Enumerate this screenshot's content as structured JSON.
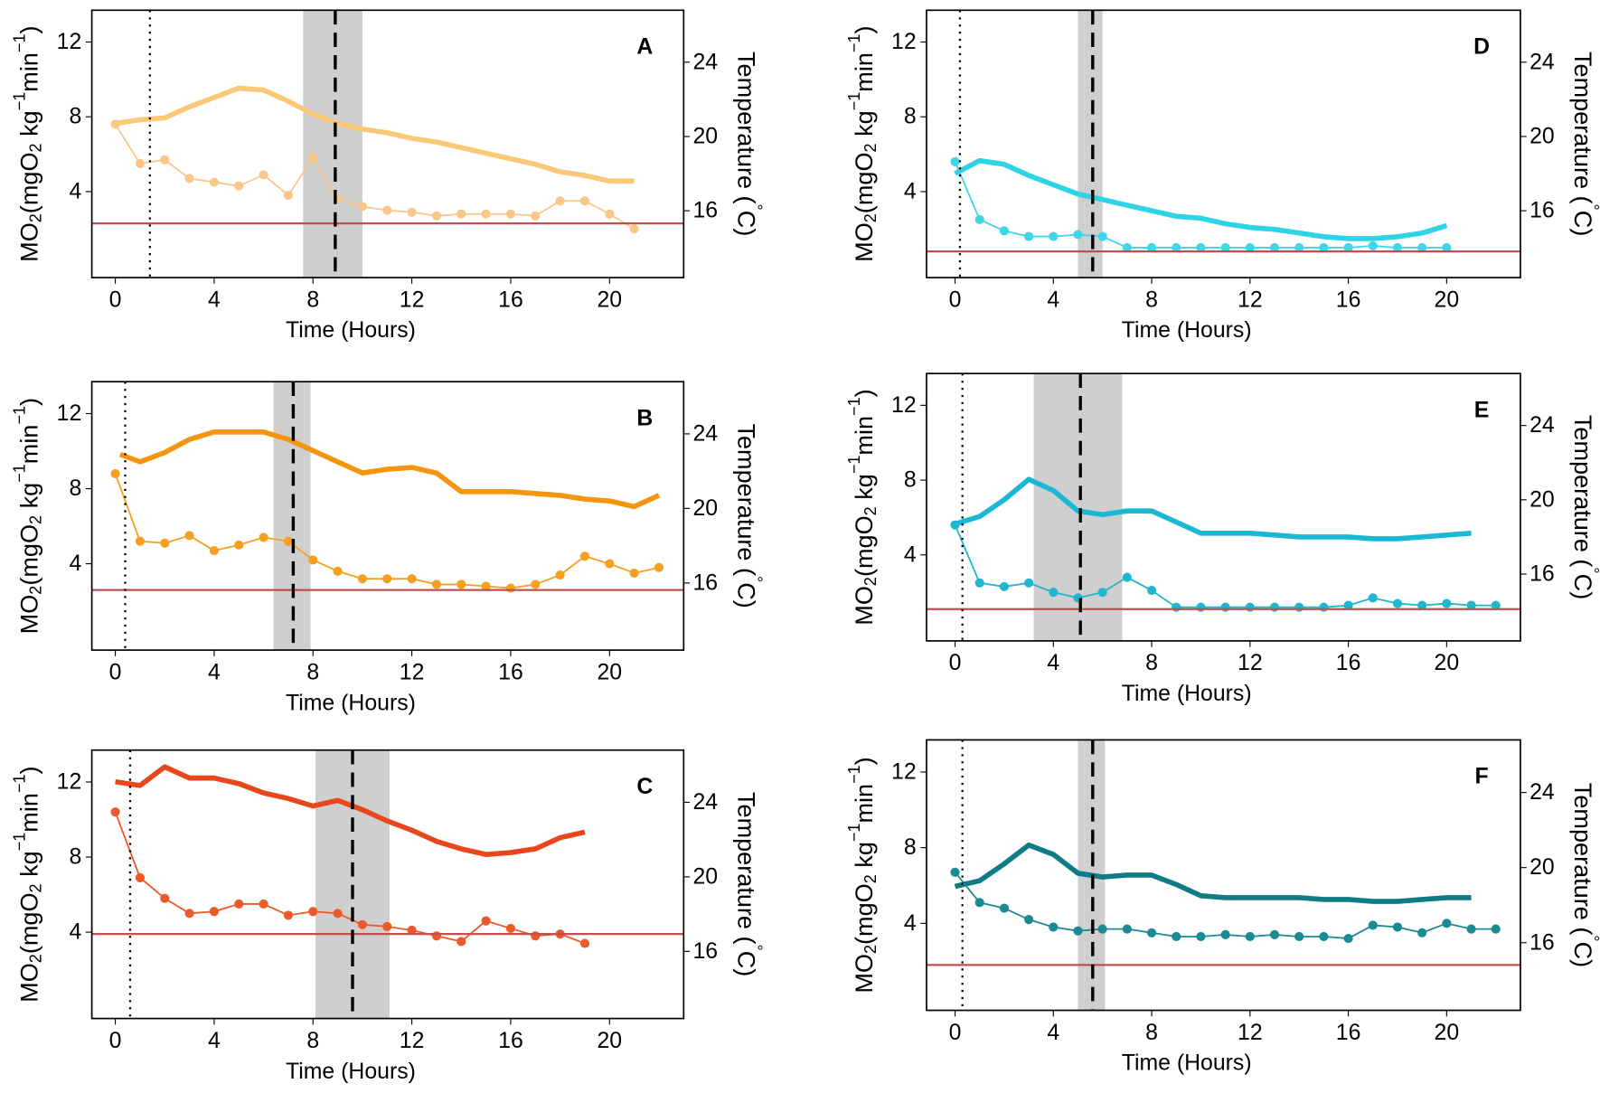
{
  "chart_data": [
    {
      "type": "line",
      "panel_label": "A",
      "x_label": "Time (Hours)",
      "y_label": [
        "MO",
        "2",
        "(mgO",
        "2",
        " kg",
        "−1",
        "min",
        "−1",
        ")"
      ],
      "y2_label": [
        "Temperature (",
        "°",
        "C)"
      ],
      "xlim": [
        -0.95,
        23
      ],
      "xticks": [
        0,
        4,
        8,
        12,
        16,
        20
      ],
      "ylim": [
        -0.6,
        13.7
      ],
      "yticks": [
        4,
        8,
        12
      ],
      "y2lim": [
        12.4,
        26.8
      ],
      "y2ticks": [
        16,
        20,
        24
      ],
      "series": [
        {
          "axis": "y2",
          "color": "#fbc878",
          "x": [
            0,
            1,
            2,
            3,
            4,
            5,
            6,
            7,
            8,
            9,
            10,
            11,
            12,
            13,
            14,
            15,
            16,
            17,
            18,
            19,
            20,
            21
          ],
          "values": [
            20.7,
            20.9,
            21.0,
            21.6,
            22.1,
            22.6,
            22.5,
            21.9,
            21.2,
            20.7,
            20.4,
            20.2,
            19.9,
            19.7,
            19.4,
            19.1,
            18.8,
            18.5,
            18.1,
            17.9,
            17.6,
            17.6
          ]
        },
        {
          "axis": "y",
          "color": "#f9c78a",
          "markers": true,
          "x": [
            0,
            1,
            2,
            3,
            4,
            5,
            6,
            7,
            8,
            9,
            10,
            11,
            12,
            13,
            14,
            15,
            16,
            17,
            18,
            19,
            20,
            21
          ],
          "values": [
            7.6,
            5.5,
            5.7,
            4.7,
            4.5,
            4.3,
            4.9,
            3.8,
            5.8,
            3.6,
            3.2,
            3.0,
            2.9,
            2.7,
            2.8,
            2.8,
            2.8,
            2.7,
            3.5,
            3.5,
            2.8,
            2.0
          ]
        }
      ],
      "hline": {
        "value": 2.3,
        "color": "#c0504d"
      },
      "dotted_vline": 1.4,
      "dashed_vline": 8.9,
      "band": [
        7.6,
        10.0
      ]
    },
    {
      "type": "line",
      "panel_label": "B",
      "x_label": "Time (Hours)",
      "y_label": [
        "MO",
        "2",
        "(mgO",
        "2",
        " kg",
        "−1",
        "min",
        "−1",
        ")"
      ],
      "y2_label": [
        "Temperature (",
        "°",
        "C)"
      ],
      "xlim": [
        -0.95,
        23
      ],
      "xticks": [
        0,
        4,
        8,
        12,
        16,
        20
      ],
      "ylim": [
        -0.6,
        13.7
      ],
      "yticks": [
        4,
        8,
        12
      ],
      "y2lim": [
        12.4,
        26.8
      ],
      "y2ticks": [
        16,
        20,
        24
      ],
      "series": [
        {
          "axis": "y2",
          "color": "#f4950f",
          "x": [
            0.2,
            1,
            2,
            3,
            4,
            5,
            6,
            7,
            8,
            9,
            10,
            11,
            12,
            13,
            14,
            15,
            16,
            17,
            18,
            19,
            20,
            21,
            22
          ],
          "values": [
            22.9,
            22.5,
            23.0,
            23.7,
            24.1,
            24.1,
            24.1,
            23.7,
            23.1,
            22.5,
            21.9,
            22.1,
            22.2,
            21.9,
            20.9,
            20.9,
            20.9,
            20.8,
            20.7,
            20.5,
            20.4,
            20.1,
            20.7
          ]
        },
        {
          "axis": "y",
          "color": "#f5a020",
          "markers": true,
          "x": [
            0,
            1,
            2,
            3,
            4,
            5,
            6,
            7,
            8,
            9,
            10,
            11,
            12,
            13,
            14,
            15,
            16,
            17,
            18,
            19,
            20,
            21,
            22
          ],
          "values": [
            8.8,
            5.2,
            5.1,
            5.5,
            4.7,
            5.0,
            5.4,
            5.2,
            4.2,
            3.6,
            3.2,
            3.2,
            3.2,
            2.9,
            2.9,
            2.8,
            2.7,
            2.9,
            3.4,
            4.4,
            4.0,
            3.5,
            3.8
          ]
        }
      ],
      "hline": {
        "value": 2.6,
        "color": "#c0504d"
      },
      "dotted_vline": 0.4,
      "dashed_vline": 7.2,
      "band": [
        6.4,
        7.9
      ]
    },
    {
      "type": "line",
      "panel_label": "C",
      "x_label": "Time (Hours)",
      "y_label": [
        "MO",
        "2",
        "(mgO",
        "2",
        " kg",
        "−1",
        "min",
        "−1",
        ")"
      ],
      "y2_label": [
        "Temperature (",
        "°",
        "C)"
      ],
      "xlim": [
        -0.95,
        23
      ],
      "xticks": [
        0,
        4,
        8,
        12,
        16,
        20
      ],
      "ylim": [
        -0.6,
        13.7
      ],
      "yticks": [
        4,
        8,
        12
      ],
      "y2lim": [
        12.4,
        26.8
      ],
      "y2ticks": [
        16,
        20,
        24
      ],
      "series": [
        {
          "axis": "y2",
          "color": "#e8461c",
          "x": [
            0,
            1,
            2,
            3,
            4,
            5,
            6,
            7,
            8,
            9,
            10,
            11,
            12,
            13,
            14,
            15,
            16,
            17,
            18,
            19
          ],
          "values": [
            25.1,
            24.9,
            25.9,
            25.3,
            25.3,
            25.0,
            24.5,
            24.2,
            23.8,
            24.1,
            23.6,
            23.0,
            22.5,
            21.9,
            21.5,
            21.2,
            21.3,
            21.5,
            22.1,
            22.4
          ]
        },
        {
          "axis": "y",
          "color": "#ec5a2a",
          "markers": true,
          "x": [
            0,
            1,
            2,
            3,
            4,
            5,
            6,
            7,
            8,
            9,
            10,
            11,
            12,
            13,
            14,
            15,
            16,
            17,
            18,
            19
          ],
          "values": [
            10.4,
            6.9,
            5.8,
            5.0,
            5.1,
            5.5,
            5.5,
            4.9,
            5.1,
            5.0,
            4.4,
            4.3,
            4.1,
            3.8,
            3.5,
            4.6,
            4.2,
            3.8,
            3.9,
            3.4
          ]
        }
      ],
      "hline": {
        "value": 3.9,
        "color": "#c0504d"
      },
      "dotted_vline": 0.6,
      "dashed_vline": 9.6,
      "band": [
        8.1,
        11.1
      ]
    },
    {
      "type": "line",
      "panel_label": "D",
      "x_label": "Time (Hours)",
      "y_label": [
        "MO",
        "2",
        "(mgO",
        "2",
        " kg",
        "−1",
        "min",
        "−1",
        ")"
      ],
      "y2_label": [
        "Temperature (",
        "°",
        "C)"
      ],
      "xlim": [
        -1.16,
        23
      ],
      "xticks": [
        0,
        4,
        8,
        12,
        16,
        20
      ],
      "ylim": [
        -0.6,
        13.7
      ],
      "yticks": [
        4,
        8,
        12
      ],
      "y2lim": [
        12.4,
        26.8
      ],
      "y2ticks": [
        16,
        20,
        24
      ],
      "series": [
        {
          "axis": "y2",
          "color": "#2ed3e6",
          "x": [
            0,
            1,
            2,
            3,
            4,
            5,
            6,
            7,
            8,
            9,
            10,
            11,
            12,
            13,
            14,
            15,
            16,
            17,
            18,
            19,
            20
          ],
          "values": [
            18.0,
            18.7,
            18.5,
            17.9,
            17.4,
            16.9,
            16.6,
            16.3,
            16.0,
            15.7,
            15.6,
            15.3,
            15.1,
            15.0,
            14.8,
            14.6,
            14.5,
            14.5,
            14.6,
            14.8,
            15.2
          ]
        },
        {
          "axis": "y",
          "color": "#3fd6e8",
          "markers": true,
          "x": [
            0,
            1,
            2,
            3,
            4,
            5,
            6,
            7,
            8,
            9,
            10,
            11,
            12,
            13,
            14,
            15,
            16,
            17,
            18,
            19,
            20
          ],
          "values": [
            5.6,
            2.5,
            1.9,
            1.6,
            1.6,
            1.7,
            1.6,
            1.0,
            1.0,
            1.0,
            1.0,
            1.0,
            1.0,
            1.0,
            1.0,
            1.0,
            1.0,
            1.1,
            1.0,
            1.0,
            1.0
          ]
        }
      ],
      "hline": {
        "value": 0.8,
        "color": "#c0504d"
      },
      "dotted_vline": 0.2,
      "dashed_vline": 5.6,
      "band": [
        5.0,
        6.0
      ]
    },
    {
      "type": "line",
      "panel_label": "E",
      "x_label": "Time (Hours)",
      "y_label": [
        "MO",
        "2",
        "(mgO",
        "2",
        " kg",
        "−1",
        "min",
        "−1",
        ")"
      ],
      "y2_label": [
        "Temperature (",
        "°",
        "C)"
      ],
      "xlim": [
        -1.16,
        23
      ],
      "xticks": [
        0,
        4,
        8,
        12,
        16,
        20
      ],
      "ylim": [
        -0.6,
        13.7
      ],
      "yticks": [
        4,
        8,
        12
      ],
      "y2lim": [
        12.4,
        26.8
      ],
      "y2ticks": [
        16,
        20,
        24
      ],
      "series": [
        {
          "axis": "y2",
          "color": "#1ab8d2",
          "x": [
            0,
            1,
            2,
            3,
            4,
            5,
            6,
            7,
            8,
            9,
            10,
            11,
            12,
            13,
            14,
            15,
            16,
            17,
            18,
            19,
            20,
            21
          ],
          "values": [
            18.7,
            19.1,
            20.0,
            21.1,
            20.5,
            19.4,
            19.2,
            19.4,
            19.4,
            18.8,
            18.2,
            18.2,
            18.2,
            18.1,
            18.0,
            18.0,
            18.0,
            17.9,
            17.9,
            18.0,
            18.1,
            18.2
          ]
        },
        {
          "axis": "y",
          "color": "#20b6cf",
          "markers": true,
          "x": [
            0,
            1,
            2,
            3,
            4,
            5,
            6,
            7,
            8,
            9,
            10,
            11,
            12,
            13,
            14,
            15,
            16,
            17,
            18,
            19,
            20,
            21,
            22
          ],
          "values": [
            5.6,
            2.5,
            2.3,
            2.5,
            2.0,
            1.7,
            2.0,
            2.8,
            2.1,
            1.2,
            1.2,
            1.2,
            1.2,
            1.2,
            1.2,
            1.2,
            1.3,
            1.7,
            1.4,
            1.3,
            1.4,
            1.3,
            1.3
          ]
        }
      ],
      "hline": {
        "value": 1.1,
        "color": "#c0504d"
      },
      "dotted_vline": 0.3,
      "dashed_vline": 5.1,
      "band": [
        3.2,
        6.8
      ]
    },
    {
      "type": "line",
      "panel_label": "F",
      "x_label": "Time (Hours)",
      "y_label": [
        "MO",
        "2",
        "(mgO",
        "2",
        " kg",
        "−1",
        "min",
        "−1",
        ")"
      ],
      "y2_label": [
        "Temperature (",
        "°",
        "C)"
      ],
      "xlim": [
        -1.16,
        23
      ],
      "xticks": [
        0,
        4,
        8,
        12,
        16,
        20
      ],
      "ylim": [
        -0.6,
        13.7
      ],
      "yticks": [
        4,
        8,
        12
      ],
      "y2lim": [
        12.4,
        26.8
      ],
      "y2ticks": [
        16,
        20,
        24
      ],
      "series": [
        {
          "axis": "y2",
          "color": "#0e7b85",
          "x": [
            0,
            1,
            2,
            3,
            4,
            5,
            6,
            7,
            8,
            9,
            10,
            11,
            12,
            13,
            14,
            15,
            16,
            17,
            18,
            19,
            20,
            21
          ],
          "values": [
            19.0,
            19.3,
            20.2,
            21.2,
            20.7,
            19.7,
            19.5,
            19.6,
            19.6,
            19.1,
            18.5,
            18.4,
            18.4,
            18.4,
            18.4,
            18.3,
            18.3,
            18.2,
            18.2,
            18.3,
            18.4,
            18.4
          ]
        },
        {
          "axis": "y",
          "color": "#1a8a93",
          "markers": true,
          "x": [
            0,
            1,
            2,
            3,
            4,
            5,
            6,
            7,
            8,
            9,
            10,
            11,
            12,
            13,
            14,
            15,
            16,
            17,
            18,
            19,
            20,
            21,
            22
          ],
          "values": [
            6.7,
            5.1,
            4.8,
            4.2,
            3.8,
            3.6,
            3.7,
            3.7,
            3.5,
            3.3,
            3.3,
            3.4,
            3.3,
            3.4,
            3.3,
            3.3,
            3.2,
            3.9,
            3.8,
            3.5,
            4.0,
            3.7,
            3.7
          ]
        }
      ],
      "hline": {
        "value": 1.8,
        "color": "#c0504d"
      },
      "dotted_vline": 0.3,
      "dashed_vline": 5.6,
      "band": [
        5.0,
        6.1
      ]
    }
  ]
}
